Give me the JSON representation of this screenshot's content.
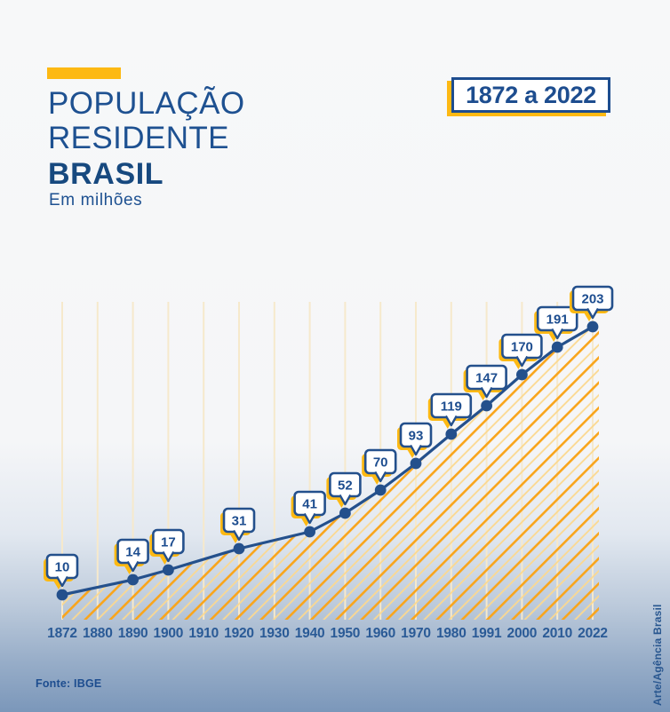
{
  "header": {
    "title_line1": "POPULAÇÃO",
    "title_line2": "RESIDENTE",
    "title_line3": "BRASIL",
    "subtitle": "Em milhões",
    "period_badge": "1872 a 2022"
  },
  "footer": {
    "source": "Fonte: IBGE",
    "credit": "Arte/Agência Brasil"
  },
  "colors": {
    "navy": "#24508c",
    "navy_text": "#1d4d8f",
    "axis_label": "#2a5a96",
    "accent_yellow": "#fdb913",
    "hatch_main": "#f9a51c",
    "hatch_light": "#fbd88f",
    "gridline": "#f6e9cc",
    "bubble_fill": "#ffffff"
  },
  "chart_data": {
    "type": "line",
    "title": "População residente Brasil, 1872 a 2022 (em milhões)",
    "xlabel": "",
    "ylabel": "Em milhões",
    "ylim": [
      0,
      210
    ],
    "grid": "vertical pale-yellow line at every tick",
    "legend_position": "none",
    "area_style": "yellow diagonal hatch fill under the line",
    "annotation_style": "value in white speech bubble with navy border and yellow drop shadow above each point",
    "x_tick_labels": [
      "1872",
      "1880",
      "1890",
      "1900",
      "1910",
      "1920",
      "1930",
      "1940",
      "1950",
      "1960",
      "1970",
      "1980",
      "1991",
      "2000",
      "2010",
      "2022"
    ],
    "points": [
      {
        "year": "1872",
        "value": 10
      },
      {
        "year": "1890",
        "value": 14
      },
      {
        "year": "1900",
        "value": 17
      },
      {
        "year": "1920",
        "value": 31
      },
      {
        "year": "1940",
        "value": 41
      },
      {
        "year": "1950",
        "value": 52
      },
      {
        "year": "1960",
        "value": 70
      },
      {
        "year": "1970",
        "value": 93
      },
      {
        "year": "1980",
        "value": 119
      },
      {
        "year": "1991",
        "value": 147
      },
      {
        "year": "2000",
        "value": 170
      },
      {
        "year": "2010",
        "value": 191
      },
      {
        "year": "2022",
        "value": 203
      }
    ]
  }
}
